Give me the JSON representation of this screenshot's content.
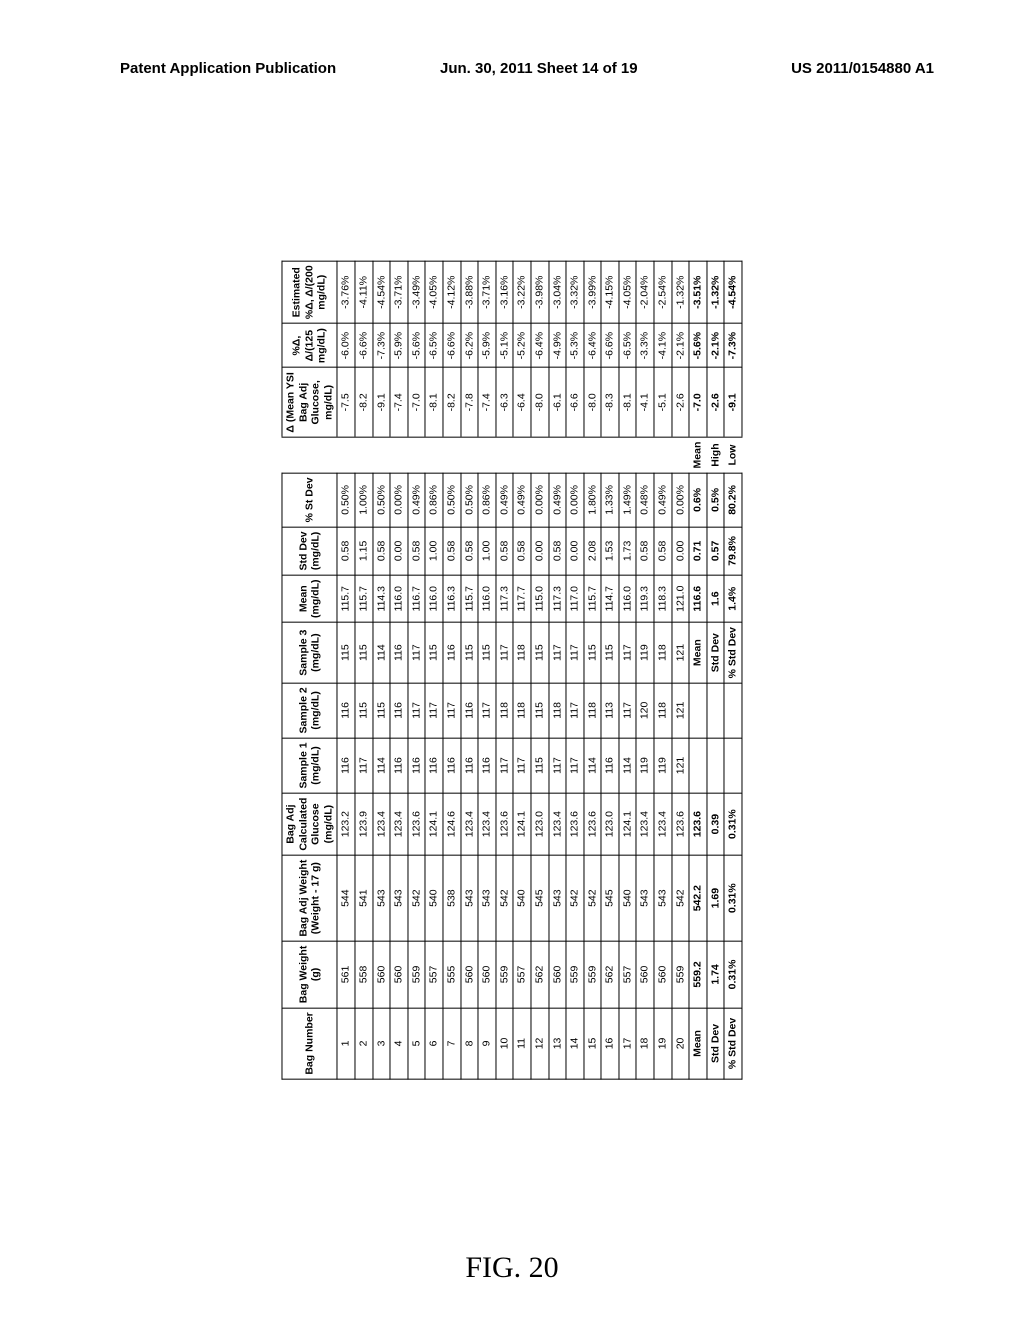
{
  "page_header": {
    "left": "Patent Application Publication",
    "mid": "Jun. 30, 2011  Sheet 14 of 19",
    "right": "US 2011/0154880 A1"
  },
  "figure_label": "FIG. 20",
  "columns": [
    {
      "id": "bagnum",
      "line1": "",
      "line2": "Bag Number",
      "line3": "",
      "line4": ""
    },
    {
      "id": "bagwt",
      "line1": "",
      "line2": "Bag Weight",
      "line3": "(g)",
      "line4": ""
    },
    {
      "id": "adjwt",
      "line1": "",
      "line2": "Bag Adj Weight",
      "line3": "(Weight - 17 g)",
      "line4": ""
    },
    {
      "id": "calc",
      "line1": "Bag Adj",
      "line2": "Calculated",
      "line3": "Glucose",
      "line4": "(mg/dL)"
    },
    {
      "id": "s1",
      "line1": "",
      "line2": "Sample 1",
      "line3": "(mg/dL)",
      "line4": ""
    },
    {
      "id": "s2",
      "line1": "",
      "line2": "Sample 2",
      "line3": "(mg/dL)",
      "line4": ""
    },
    {
      "id": "s3",
      "line1": "",
      "line2": "Sample 3",
      "line3": "(mg/dL)",
      "line4": ""
    },
    {
      "id": "mean",
      "line1": "",
      "line2": "Mean",
      "line3": "(mg/dL)",
      "line4": ""
    },
    {
      "id": "std",
      "line1": "",
      "line2": "Std Dev",
      "line3": "(mg/dL)",
      "line4": ""
    },
    {
      "id": "pctstd",
      "line1": "",
      "line2": "% St Dev",
      "line3": "",
      "line4": ""
    },
    {
      "id": "spacer",
      "spacer": true
    },
    {
      "id": "delta",
      "line1": "Δ (Mean YSI",
      "line2": "Bag Adj",
      "line3": "Glucose,",
      "line4": "mg/dL)"
    },
    {
      "id": "pctd125",
      "line1": "%Δ,",
      "line2": "Δ/(125",
      "line3": "mg/dL)",
      "line4": ""
    },
    {
      "id": "pctd200",
      "line1": "Estimated",
      "line2": "%Δ, Δ/(200",
      "line3": "mg/dL)",
      "line4": ""
    }
  ],
  "rows": [
    {
      "bagnum": "1",
      "bagwt": "561",
      "adjwt": "544",
      "calc": "123.2",
      "s1": "116",
      "s2": "116",
      "s3": "115",
      "mean": "115.7",
      "std": "0.58",
      "pctstd": "0.50%",
      "spacer": "",
      "delta": "-7.5",
      "pctd125": "-6.0%",
      "pctd200": "-3.76%"
    },
    {
      "bagnum": "2",
      "bagwt": "558",
      "adjwt": "541",
      "calc": "123.9",
      "s1": "117",
      "s2": "115",
      "s3": "115",
      "mean": "115.7",
      "std": "1.15",
      "pctstd": "1.00%",
      "spacer": "",
      "delta": "-8.2",
      "pctd125": "-6.6%",
      "pctd200": "-4.11%"
    },
    {
      "bagnum": "3",
      "bagwt": "560",
      "adjwt": "543",
      "calc": "123.4",
      "s1": "114",
      "s2": "115",
      "s3": "114",
      "mean": "114.3",
      "std": "0.58",
      "pctstd": "0.50%",
      "spacer": "",
      "delta": "-9.1",
      "pctd125": "-7.3%",
      "pctd200": "-4.54%"
    },
    {
      "bagnum": "4",
      "bagwt": "560",
      "adjwt": "543",
      "calc": "123.4",
      "s1": "116",
      "s2": "116",
      "s3": "116",
      "mean": "116.0",
      "std": "0.00",
      "pctstd": "0.00%",
      "spacer": "",
      "delta": "-7.4",
      "pctd125": "-5.9%",
      "pctd200": "-3.71%"
    },
    {
      "bagnum": "5",
      "bagwt": "559",
      "adjwt": "542",
      "calc": "123.6",
      "s1": "116",
      "s2": "117",
      "s3": "117",
      "mean": "116.7",
      "std": "0.58",
      "pctstd": "0.49%",
      "spacer": "",
      "delta": "-7.0",
      "pctd125": "-5.6%",
      "pctd200": "-3.49%"
    },
    {
      "bagnum": "6",
      "bagwt": "557",
      "adjwt": "540",
      "calc": "124.1",
      "s1": "116",
      "s2": "117",
      "s3": "115",
      "mean": "116.0",
      "std": "1.00",
      "pctstd": "0.86%",
      "spacer": "",
      "delta": "-8.1",
      "pctd125": "-6.5%",
      "pctd200": "-4.05%"
    },
    {
      "bagnum": "7",
      "bagwt": "555",
      "adjwt": "538",
      "calc": "124.6",
      "s1": "116",
      "s2": "117",
      "s3": "116",
      "mean": "116.3",
      "std": "0.58",
      "pctstd": "0.50%",
      "spacer": "",
      "delta": "-8.2",
      "pctd125": "-6.6%",
      "pctd200": "-4.12%"
    },
    {
      "bagnum": "8",
      "bagwt": "560",
      "adjwt": "543",
      "calc": "123.4",
      "s1": "116",
      "s2": "116",
      "s3": "115",
      "mean": "115.7",
      "std": "0.58",
      "pctstd": "0.50%",
      "spacer": "",
      "delta": "-7.8",
      "pctd125": "-6.2%",
      "pctd200": "-3.88%"
    },
    {
      "bagnum": "9",
      "bagwt": "560",
      "adjwt": "543",
      "calc": "123.4",
      "s1": "116",
      "s2": "117",
      "s3": "115",
      "mean": "116.0",
      "std": "1.00",
      "pctstd": "0.86%",
      "spacer": "",
      "delta": "-7.4",
      "pctd125": "-5.9%",
      "pctd200": "-3.71%"
    },
    {
      "bagnum": "10",
      "bagwt": "559",
      "adjwt": "542",
      "calc": "123.6",
      "s1": "117",
      "s2": "118",
      "s3": "117",
      "mean": "117.3",
      "std": "0.58",
      "pctstd": "0.49%",
      "spacer": "",
      "delta": "-6.3",
      "pctd125": "-5.1%",
      "pctd200": "-3.16%"
    },
    {
      "bagnum": "11",
      "bagwt": "557",
      "adjwt": "540",
      "calc": "124.1",
      "s1": "117",
      "s2": "118",
      "s3": "118",
      "mean": "117.7",
      "std": "0.58",
      "pctstd": "0.49%",
      "spacer": "",
      "delta": "-6.4",
      "pctd125": "-5.2%",
      "pctd200": "-3.22%"
    },
    {
      "bagnum": "12",
      "bagwt": "562",
      "adjwt": "545",
      "calc": "123.0",
      "s1": "115",
      "s2": "115",
      "s3": "115",
      "mean": "115.0",
      "std": "0.00",
      "pctstd": "0.00%",
      "spacer": "",
      "delta": "-8.0",
      "pctd125": "-6.4%",
      "pctd200": "-3.98%"
    },
    {
      "bagnum": "13",
      "bagwt": "560",
      "adjwt": "543",
      "calc": "123.4",
      "s1": "117",
      "s2": "118",
      "s3": "117",
      "mean": "117.3",
      "std": "0.58",
      "pctstd": "0.49%",
      "spacer": "",
      "delta": "-6.1",
      "pctd125": "-4.9%",
      "pctd200": "-3.04%"
    },
    {
      "bagnum": "14",
      "bagwt": "559",
      "adjwt": "542",
      "calc": "123.6",
      "s1": "117",
      "s2": "117",
      "s3": "117",
      "mean": "117.0",
      "std": "0.00",
      "pctstd": "0.00%",
      "spacer": "",
      "delta": "-6.6",
      "pctd125": "-5.3%",
      "pctd200": "-3.32%"
    },
    {
      "bagnum": "15",
      "bagwt": "559",
      "adjwt": "542",
      "calc": "123.6",
      "s1": "114",
      "s2": "118",
      "s3": "115",
      "mean": "115.7",
      "std": "2.08",
      "pctstd": "1.80%",
      "spacer": "",
      "delta": "-8.0",
      "pctd125": "-6.4%",
      "pctd200": "-3.99%"
    },
    {
      "bagnum": "16",
      "bagwt": "562",
      "adjwt": "545",
      "calc": "123.0",
      "s1": "116",
      "s2": "113",
      "s3": "115",
      "mean": "114.7",
      "std": "1.53",
      "pctstd": "1.33%",
      "spacer": "",
      "delta": "-8.3",
      "pctd125": "-6.6%",
      "pctd200": "-4.15%"
    },
    {
      "bagnum": "17",
      "bagwt": "557",
      "adjwt": "540",
      "calc": "124.1",
      "s1": "114",
      "s2": "117",
      "s3": "117",
      "mean": "116.0",
      "std": "1.73",
      "pctstd": "1.49%",
      "spacer": "",
      "delta": "-8.1",
      "pctd125": "-6.5%",
      "pctd200": "-4.05%"
    },
    {
      "bagnum": "18",
      "bagwt": "560",
      "adjwt": "543",
      "calc": "123.4",
      "s1": "119",
      "s2": "120",
      "s3": "119",
      "mean": "119.3",
      "std": "0.58",
      "pctstd": "0.48%",
      "spacer": "",
      "delta": "-4.1",
      "pctd125": "-3.3%",
      "pctd200": "-2.04%"
    },
    {
      "bagnum": "19",
      "bagwt": "560",
      "adjwt": "543",
      "calc": "123.4",
      "s1": "119",
      "s2": "118",
      "s3": "118",
      "mean": "118.3",
      "std": "0.58",
      "pctstd": "0.49%",
      "spacer": "",
      "delta": "-5.1",
      "pctd125": "-4.1%",
      "pctd200": "-2.54%"
    },
    {
      "bagnum": "20",
      "bagwt": "559",
      "adjwt": "542",
      "calc": "123.6",
      "s1": "121",
      "s2": "121",
      "s3": "121",
      "mean": "121.0",
      "std": "0.00",
      "pctstd": "0.00%",
      "spacer": "",
      "delta": "-2.6",
      "pctd125": "-2.1%",
      "pctd200": "-1.32%"
    },
    {
      "bagnum": "Mean",
      "bold": true,
      "bagwt": "559.2",
      "adjwt": "542.2",
      "calc": "123.6",
      "s1": "",
      "s2": "",
      "s3": "Mean",
      "mean": "116.6",
      "std": "0.71",
      "pctstd": "0.6%",
      "spacer": "Mean",
      "delta": "-7.0",
      "pctd125": "-5.6%",
      "pctd200": "-3.51%"
    },
    {
      "bagnum": "Std Dev",
      "bold": true,
      "bagwt": "1.74",
      "adjwt": "1.69",
      "calc": "0.39",
      "s1": "",
      "s2": "",
      "s3": "Std Dev",
      "mean": "1.6",
      "std": "0.57",
      "pctstd": "0.5%",
      "spacer": "High",
      "delta": "-2.6",
      "pctd125": "-2.1%",
      "pctd200": "-1.32%"
    },
    {
      "bagnum": "% Std Dev",
      "bold": true,
      "bagwt": "0.31%",
      "adjwt": "0.31%",
      "calc": "0.31%",
      "s1": "",
      "s2": "",
      "s3": "% Std Dev",
      "mean": "1.4%",
      "std": "79.8%",
      "pctstd": "80.2%",
      "spacer": "Low",
      "delta": "-9.1",
      "pctd125": "-7.3%",
      "pctd200": "-4.54%"
    }
  ]
}
